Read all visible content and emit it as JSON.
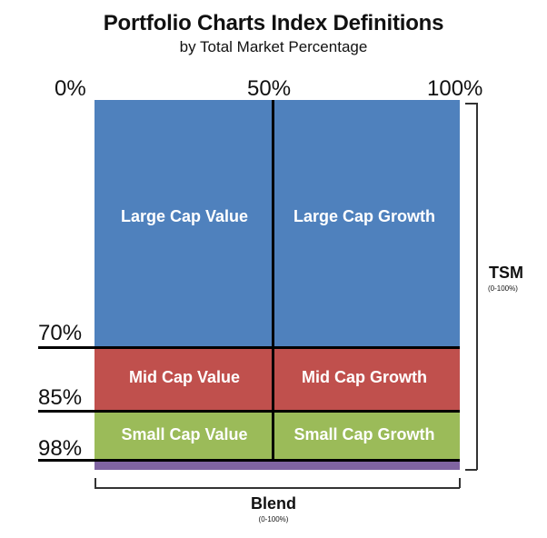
{
  "title": "Portfolio Charts Index Definitions",
  "subtitle": "by Total Market Percentage",
  "top_scale": {
    "start": "0%",
    "middle": "50%",
    "end": "100%"
  },
  "left_scale": {
    "mid_start": "70%",
    "small_start": "85%",
    "small_end": "98%"
  },
  "cells": {
    "large_value": "Large Cap Value",
    "large_growth": "Large Cap Growth",
    "mid_value": "Mid Cap Value",
    "mid_growth": "Mid Cap Growth",
    "small_value": "Small Cap Value",
    "small_growth": "Small Cap Growth"
  },
  "tsm": {
    "label": "TSM",
    "range": "(0-100%)"
  },
  "blend": {
    "label": "Blend",
    "range": "(0-100%)"
  },
  "colors": {
    "large": "#4f81bd",
    "mid": "#c0504d",
    "small": "#9bbb59",
    "remainder": "#8064a2"
  }
}
